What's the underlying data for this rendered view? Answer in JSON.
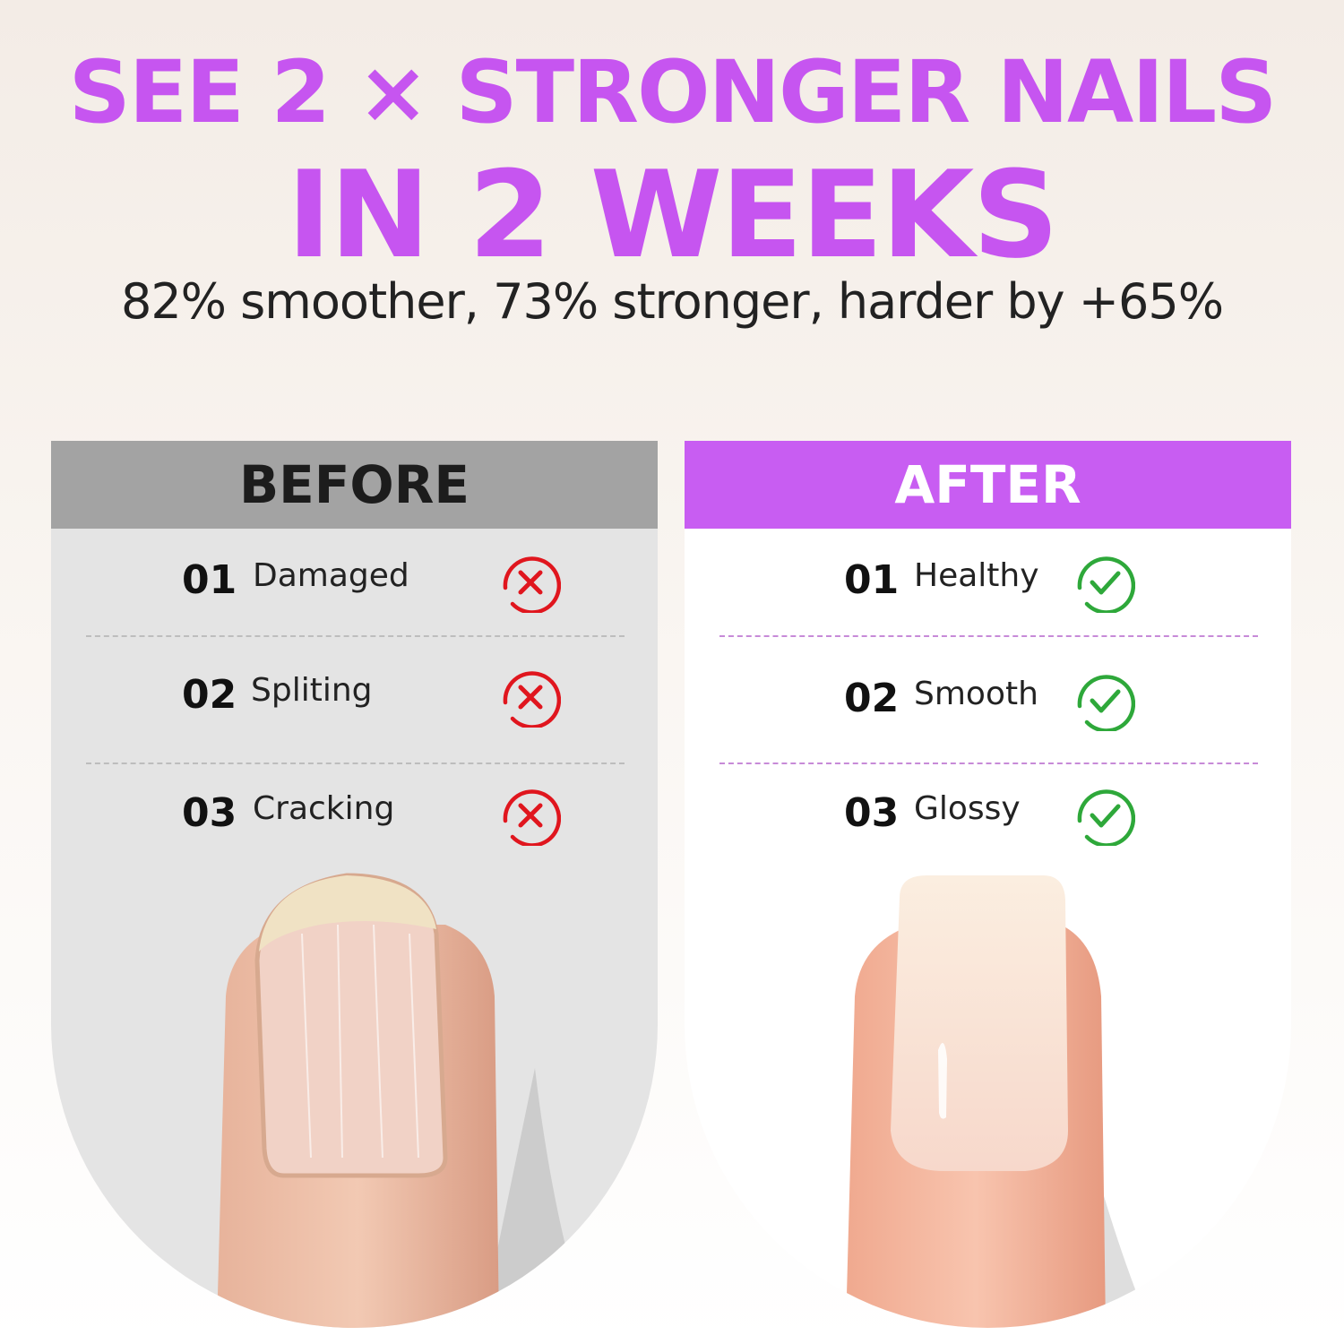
{
  "headline": {
    "line1": "SEE 2 × STRONGER NAILS",
    "line2": "IN 2 WEEKS",
    "color": "#c655f0"
  },
  "subheadline": "82% smoother, 73% stronger, harder by +65%",
  "before": {
    "title": "BEFORE",
    "items": [
      {
        "num": "01",
        "label": "Damaged",
        "icon": "x-circle-icon"
      },
      {
        "num": "02",
        "label": "Spliting",
        "icon": "x-circle-icon"
      },
      {
        "num": "03",
        "label": "Cracking",
        "icon": "x-circle-icon"
      }
    ],
    "icon_color": "#e0161e"
  },
  "after": {
    "title": "AFTER",
    "items": [
      {
        "num": "01",
        "label": "Healthy",
        "icon": "check-circle-icon"
      },
      {
        "num": "02",
        "label": "Smooth",
        "icon": "check-circle-icon"
      },
      {
        "num": "03",
        "label": "Glossy",
        "icon": "check-circle-icon"
      }
    ],
    "icon_color": "#2ea83a",
    "accent": "#c85df2"
  }
}
